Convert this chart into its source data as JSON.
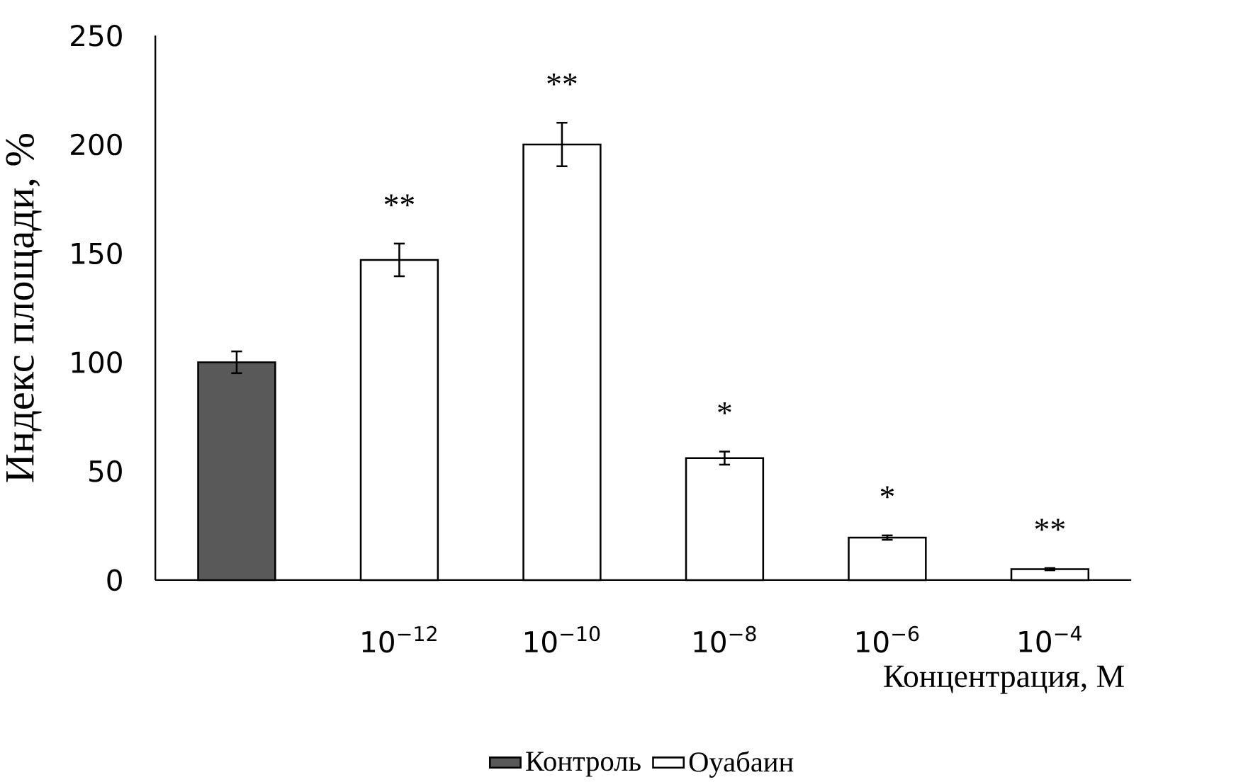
{
  "chart_data": {
    "type": "bar",
    "xlabel": "Концентрация, М",
    "ylabel": "Индекс площади, %",
    "categories": [
      null,
      "10$^{−12}$",
      "10$^{−10}$",
      "10$^{−8}$",
      "10$^{−6}$",
      "10$^{−4}$"
    ],
    "series": [
      {
        "name": "Контроль",
        "color": "#595959",
        "values": [
          100,
          null,
          null,
          null,
          null,
          null
        ],
        "errors": [
          5,
          null,
          null,
          null,
          null,
          null
        ]
      },
      {
        "name": "Оуабаин",
        "color": "#ffffff",
        "values": [
          null,
          147,
          200,
          56,
          19.5,
          5
        ],
        "errors": [
          null,
          7.5,
          10,
          3,
          1,
          0.5
        ]
      }
    ],
    "ylim": [
      0,
      250
    ],
    "yticks": [
      0,
      50,
      100,
      150,
      200,
      250
    ],
    "legend": "bottom",
    "annotations": [
      "**",
      "**",
      "*",
      "*",
      "**"
    ]
  }
}
